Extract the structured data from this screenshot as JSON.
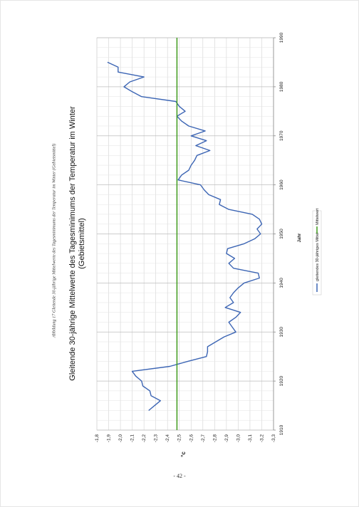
{
  "caption": "Abbildung 17 Gleitende 30-jährige Mittelwerte des Tagesminimums der Temperatur im Winter (Gebietsmittel)",
  "page_number": "- 42 -",
  "colors": {
    "series": "#3c65b4",
    "mean": "#3f9a1c",
    "grid": "#d2d2d2",
    "axis": "#8a8a8a"
  },
  "chart_data": {
    "type": "line",
    "title": "Gleitende 30-jährige Mittelwerte des Tagesminimums der Temperatur im Winter",
    "subtitle": "(Gebietsmittel)",
    "xlabel": "Jahr",
    "ylabel": "°c",
    "xlim": [
      1910,
      1990
    ],
    "ylim": [
      -3.3,
      -1.8
    ],
    "x_ticks": [
      1910,
      1920,
      1930,
      1940,
      1950,
      1960,
      1970,
      1980,
      1990
    ],
    "y_ticks": [
      -1.8,
      -1.9,
      -2.0,
      -2.1,
      -2.2,
      -2.3,
      -2.4,
      -2.5,
      -2.6,
      -2.7,
      -2.8,
      -2.9,
      -3.0,
      -3.1,
      -3.2,
      -3.3
    ],
    "x_tick_labels": [
      "1910",
      "1920",
      "1930",
      "1940",
      "1950",
      "1960",
      "1970",
      "1980",
      "1990"
    ],
    "y_tick_labels": [
      "-1,8",
      "-1,9",
      "-2,0",
      "-2,1",
      "-2,2",
      "-2,3",
      "-2,4",
      "-2,5",
      "-2,6",
      "-2,7",
      "-2,8",
      "-2,9",
      "-3,0",
      "-3,1",
      "-3,2",
      "-3,3"
    ],
    "grid": true,
    "legend_position": "right",
    "series": [
      {
        "name": "gleitendes 30-jähriges Mittel",
        "x": [
          1914,
          1915,
          1916,
          1917,
          1918,
          1919,
          1920,
          1921,
          1922,
          1923,
          1924,
          1925,
          1926,
          1927,
          1928,
          1929,
          1930,
          1931,
          1932,
          1933,
          1934,
          1935,
          1936,
          1937,
          1938,
          1939,
          1940,
          1941,
          1942,
          1943,
          1944,
          1945,
          1946,
          1947,
          1948,
          1949,
          1950,
          1951,
          1952,
          1953,
          1954,
          1955,
          1956,
          1957,
          1958,
          1959,
          1960,
          1961,
          1962,
          1963,
          1964,
          1965,
          1966,
          1967,
          1968,
          1969,
          1970,
          1971,
          1972,
          1973,
          1974,
          1975,
          1976,
          1977,
          1978,
          1979,
          1980,
          1981,
          1982,
          1983,
          1984,
          1985
        ],
        "values": [
          -2.24,
          -2.29,
          -2.34,
          -2.26,
          -2.25,
          -2.19,
          -2.18,
          -2.13,
          -2.1,
          -2.42,
          -2.57,
          -2.73,
          -2.74,
          -2.74,
          -2.81,
          -2.88,
          -2.98,
          -2.95,
          -2.92,
          -2.98,
          -3.02,
          -2.89,
          -2.96,
          -2.93,
          -2.96,
          -3.0,
          -3.05,
          -3.18,
          -3.17,
          -2.96,
          -2.92,
          -2.97,
          -2.9,
          -2.91,
          -3.05,
          -3.14,
          -3.19,
          -3.16,
          -3.2,
          -3.18,
          -3.12,
          -2.92,
          -2.84,
          -2.85,
          -2.75,
          -2.71,
          -2.68,
          -2.49,
          -2.52,
          -2.58,
          -2.6,
          -2.63,
          -2.65,
          -2.76,
          -2.64,
          -2.73,
          -2.6,
          -2.72,
          -2.58,
          -2.52,
          -2.48,
          -2.55,
          -2.5,
          -2.47,
          -2.18,
          -2.1,
          -2.03,
          -2.08,
          -2.2,
          -1.98,
          -1.98,
          -1.89
        ]
      },
      {
        "name": "Mittelwert",
        "x": [
          1910,
          1990
        ],
        "values": [
          -2.48,
          -2.48
        ]
      }
    ]
  }
}
